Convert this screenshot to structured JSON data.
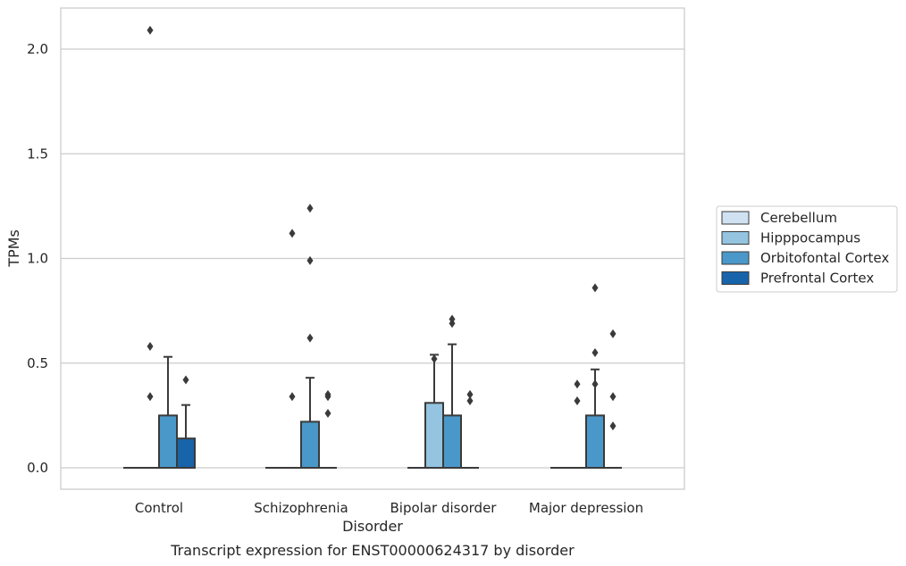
{
  "chart_data": {
    "type": "box",
    "caption": "Transcript expression for ENST00000624317 by disorder",
    "xlabel": "Disorder",
    "ylabel": "TPMs",
    "ylim": [
      -0.1,
      2.2
    ],
    "yticks": [
      0.0,
      0.5,
      1.0,
      1.5,
      2.0
    ],
    "ytick_labels": [
      "0.0",
      "0.5",
      "1.0",
      "1.5",
      "2.0"
    ],
    "grid": "horizontal",
    "legend_position": "right",
    "categories": [
      "Control",
      "Schizophrenia",
      "Bipolar disorder",
      "Major depression"
    ],
    "series": [
      {
        "name": "Cerebellum",
        "color": "#d0e1f2",
        "boxes": [
          {
            "q1": 0,
            "median": 0,
            "q3": 0,
            "whisker_low": 0,
            "whisker_high": 0,
            "outliers": []
          },
          {
            "q1": 0,
            "median": 0,
            "q3": 0,
            "whisker_low": 0,
            "whisker_high": 0,
            "outliers": []
          },
          {
            "q1": 0,
            "median": 0,
            "q3": 0,
            "whisker_low": 0,
            "whisker_high": 0,
            "outliers": []
          },
          {
            "q1": 0,
            "median": 0,
            "q3": 0,
            "whisker_low": 0,
            "whisker_high": 0,
            "outliers": []
          }
        ]
      },
      {
        "name": "Hipppocampus",
        "color": "#94c4df",
        "boxes": [
          {
            "q1": 0,
            "median": 0,
            "q3": 0,
            "whisker_low": 0,
            "whisker_high": 0,
            "outliers": [
              2.09,
              0.58,
              0.34
            ]
          },
          {
            "q1": 0,
            "median": 0,
            "q3": 0,
            "whisker_low": 0,
            "whisker_high": 0,
            "outliers": [
              1.12,
              0.34
            ]
          },
          {
            "q1": 0,
            "median": 0,
            "q3": 0.31,
            "whisker_low": 0,
            "whisker_high": 0.54,
            "outliers": [
              0.52
            ]
          },
          {
            "q1": 0,
            "median": 0,
            "q3": 0,
            "whisker_low": 0,
            "whisker_high": 0,
            "outliers": [
              0.4,
              0.32
            ]
          }
        ]
      },
      {
        "name": "Orbitofontal Cortex",
        "color": "#4a98c9",
        "boxes": [
          {
            "q1": 0,
            "median": 0,
            "q3": 0.25,
            "whisker_low": 0,
            "whisker_high": 0.53,
            "outliers": []
          },
          {
            "q1": 0,
            "median": 0,
            "q3": 0.22,
            "whisker_low": 0,
            "whisker_high": 0.43,
            "outliers": [
              1.24,
              0.99,
              0.62
            ]
          },
          {
            "q1": 0,
            "median": 0,
            "q3": 0.25,
            "whisker_low": 0,
            "whisker_high": 0.59,
            "outliers": [
              0.71,
              0.69
            ]
          },
          {
            "q1": 0,
            "median": 0,
            "q3": 0.25,
            "whisker_low": 0,
            "whisker_high": 0.47,
            "outliers": [
              0.86,
              0.55,
              0.4
            ]
          }
        ]
      },
      {
        "name": "Prefrontal Cortex",
        "color": "#1764ab",
        "boxes": [
          {
            "q1": 0,
            "median": 0,
            "q3": 0.14,
            "whisker_low": 0,
            "whisker_high": 0.3,
            "outliers": [
              0.42
            ]
          },
          {
            "q1": 0,
            "median": 0,
            "q3": 0,
            "whisker_low": 0,
            "whisker_high": 0,
            "outliers": [
              0.35,
              0.34,
              0.26
            ]
          },
          {
            "q1": 0,
            "median": 0,
            "q3": 0,
            "whisker_low": 0,
            "whisker_high": 0,
            "outliers": [
              0.35,
              0.32
            ]
          },
          {
            "q1": 0,
            "median": 0,
            "q3": 0,
            "whisker_low": 0,
            "whisker_high": 0,
            "outliers": [
              0.64,
              0.34,
              0.2
            ]
          }
        ]
      }
    ],
    "colors": {
      "grid": "#cccccc",
      "frame": "#cccccc",
      "box_edge": "#3a3a3a",
      "outlier": "#3a3a3a"
    }
  }
}
